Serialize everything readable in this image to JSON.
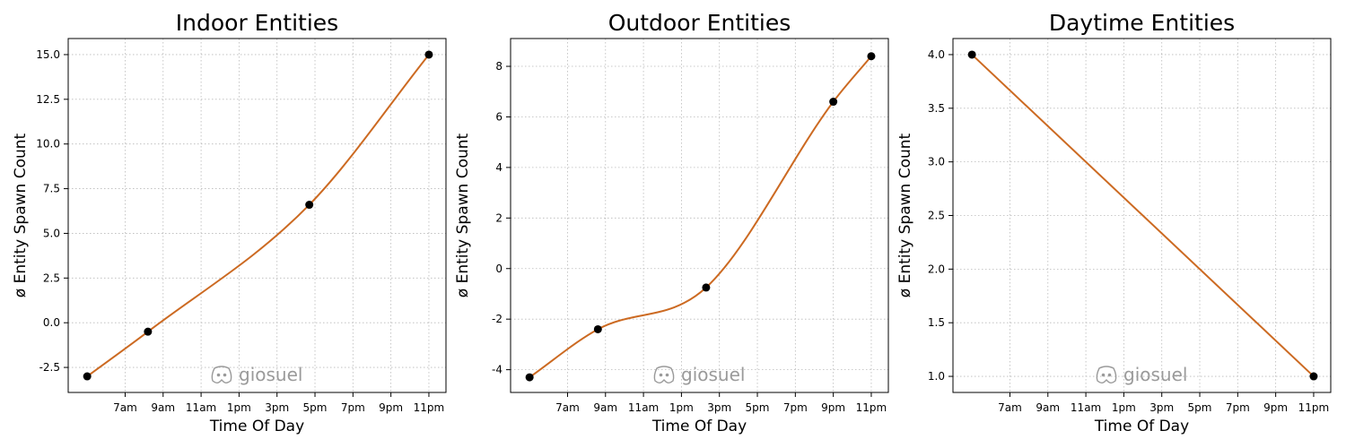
{
  "colors": {
    "line": "#cc6a22",
    "marker": "#000000",
    "watermark": "#9a9a9a"
  },
  "watermark": {
    "icon": "discord-icon",
    "text": "giosuel"
  },
  "chart_data": [
    {
      "type": "line",
      "title": "Indoor Entities",
      "xlabel": "Time Of Day",
      "ylabel": "ø Entity Spawn Count",
      "grid": true,
      "xlim": [
        4.0,
        23.9
      ],
      "ylim": [
        -3.9,
        15.9
      ],
      "x_ticks": [
        7,
        9,
        11,
        13,
        15,
        17,
        19,
        21,
        23
      ],
      "x_tick_labels": [
        "7am",
        "9am",
        "11am",
        "1pm",
        "3pm",
        "5pm",
        "7pm",
        "9pm",
        "11pm"
      ],
      "y_ticks": [
        -2.5,
        0,
        2.5,
        5,
        7.5,
        10,
        12.5,
        15
      ],
      "y_tick_labels": [
        "-2.5",
        "0.0",
        "2.5",
        "5.0",
        "7.5",
        "10.0",
        "12.5",
        "15.0"
      ],
      "points": [
        {
          "x": 5.0,
          "y": -3.0
        },
        {
          "x": 8.2,
          "y": -0.5
        },
        {
          "x": 16.7,
          "y": 6.6
        },
        {
          "x": 23.0,
          "y": 15.0
        }
      ]
    },
    {
      "type": "line",
      "title": "Outdoor Entities",
      "xlabel": "Time Of Day",
      "ylabel": "ø Entity Spawn Count",
      "grid": true,
      "xlim": [
        4.0,
        23.9
      ],
      "ylim": [
        -4.9,
        9.1
      ],
      "x_ticks": [
        7,
        9,
        11,
        13,
        15,
        17,
        19,
        21,
        23
      ],
      "x_tick_labels": [
        "7am",
        "9am",
        "11am",
        "1pm",
        "3pm",
        "5pm",
        "7pm",
        "9pm",
        "11pm"
      ],
      "y_ticks": [
        -4,
        -2,
        0,
        2,
        4,
        6,
        8
      ],
      "y_tick_labels": [
        "-4",
        "-2",
        "0",
        "2",
        "4",
        "6",
        "8"
      ],
      "points": [
        {
          "x": 5.0,
          "y": -4.3
        },
        {
          "x": 8.6,
          "y": -2.4
        },
        {
          "x": 14.3,
          "y": -0.75
        },
        {
          "x": 21.0,
          "y": 6.6
        },
        {
          "x": 23.0,
          "y": 8.4
        }
      ]
    },
    {
      "type": "line",
      "title": "Daytime Entities",
      "xlabel": "Time Of Day",
      "ylabel": "ø Entity Spawn Count",
      "grid": true,
      "xlim": [
        4.0,
        23.9
      ],
      "ylim": [
        0.85,
        4.15
      ],
      "x_ticks": [
        7,
        9,
        11,
        13,
        15,
        17,
        19,
        21,
        23
      ],
      "x_tick_labels": [
        "7am",
        "9am",
        "11am",
        "1pm",
        "3pm",
        "5pm",
        "7pm",
        "9pm",
        "11pm"
      ],
      "y_ticks": [
        1.0,
        1.5,
        2.0,
        2.5,
        3.0,
        3.5,
        4.0
      ],
      "y_tick_labels": [
        "1.0",
        "1.5",
        "2.0",
        "2.5",
        "3.0",
        "3.5",
        "4.0"
      ],
      "points": [
        {
          "x": 5.0,
          "y": 4.0
        },
        {
          "x": 23.0,
          "y": 1.0
        }
      ]
    }
  ]
}
